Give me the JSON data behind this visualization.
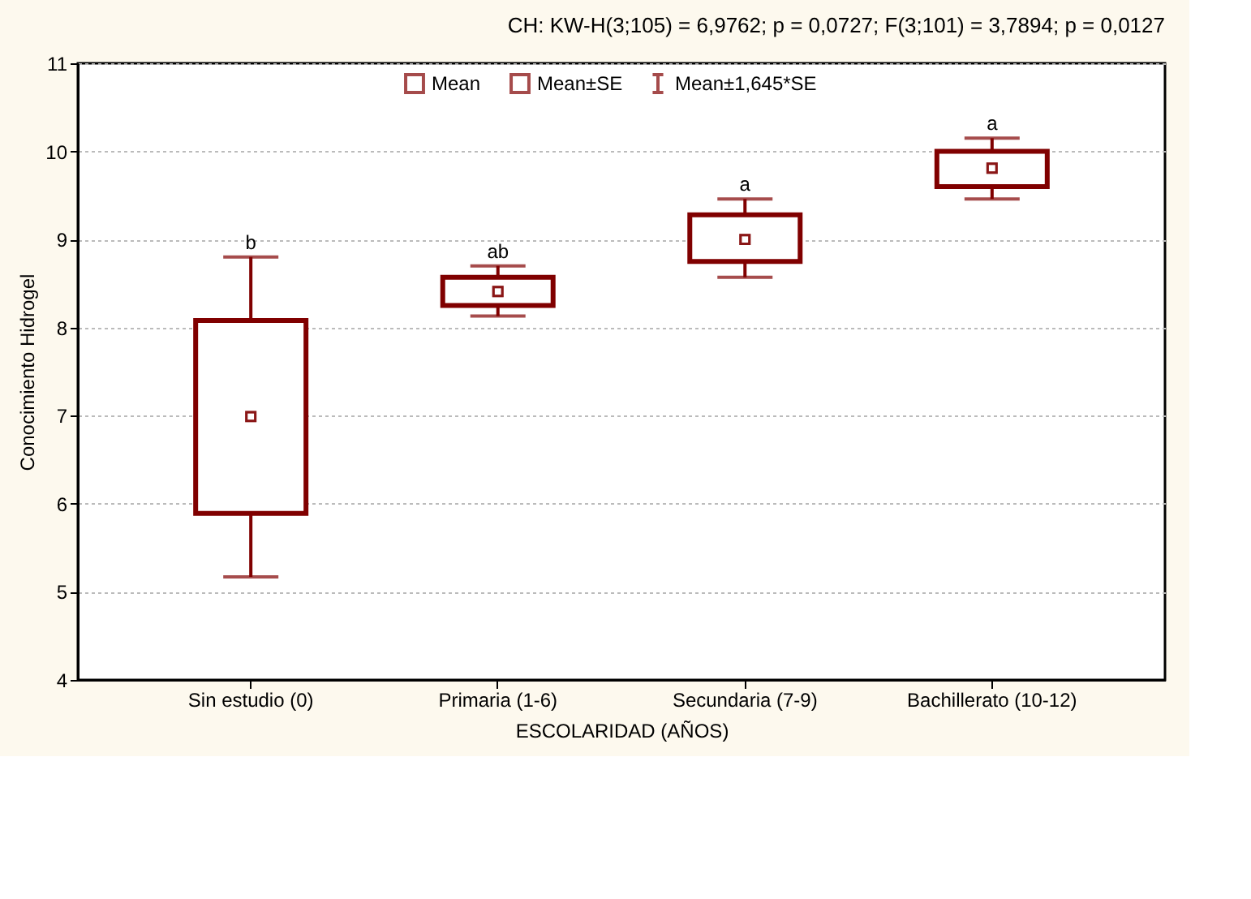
{
  "chart_data": {
    "type": "scatter",
    "title": "CH:  KW-H(3;105) = 6,9762; p = 0,0727;  F(3;101) = 3,7894; p = 0,0127",
    "xlabel": "ESCOLARIDAD (AÑOS)",
    "ylabel": "Conocimiento Hidrogel",
    "categories": [
      "Sin estudio (0)",
      "Primaria (1-6)",
      "Secundaria (7-9)",
      "Bachillerato (10-12)"
    ],
    "series": [
      {
        "name": "Mean",
        "marker": "square",
        "color": "#800000",
        "values": [
          6.99,
          8.41,
          9.0,
          9.81
        ]
      },
      {
        "name": "Mean±SE",
        "type": "bar",
        "color": "#800000",
        "base": [
          5.89,
          8.25,
          8.75,
          9.6
        ],
        "values": [
          2.19,
          0.32,
          0.53,
          0.4
        ]
      },
      {
        "name": "Mean±1,645*SE",
        "type": "scatter",
        "marker": "square",
        "color": "#800000",
        "values": [
          6.99,
          8.41,
          9.0,
          9.81
        ],
        "errors": [
          [
            5.17,
            8.8
          ],
          [
            8.13,
            8.7
          ],
          [
            8.57,
            9.46
          ],
          [
            9.46,
            10.15
          ]
        ]
      }
    ],
    "annotations": [
      {
        "text": "b",
        "x": "Sin estudio (0)",
        "y": 8.8
      },
      {
        "text": "ab",
        "x": "Primaria (1-6)",
        "y": 8.7
      },
      {
        "text": "a",
        "x": "Secundaria (7-9)",
        "y": 9.46
      },
      {
        "text": "a",
        "x": "Bachillerato (10-12)",
        "y": 10.15
      }
    ],
    "ylim": [
      4,
      11
    ],
    "yticks": [
      4,
      5,
      6,
      7,
      8,
      9,
      10,
      11
    ],
    "grid": "y",
    "legend": "top"
  }
}
